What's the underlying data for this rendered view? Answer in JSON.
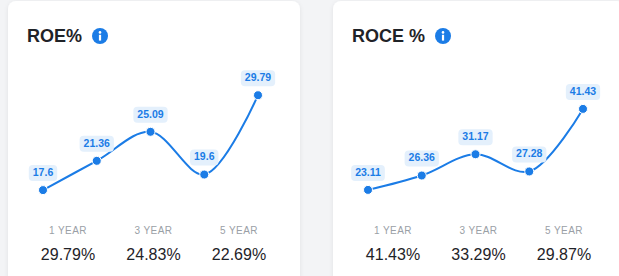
{
  "chart_data": [
    {
      "type": "line",
      "title": "ROE%",
      "color": "#1b7ce6",
      "categories": [
        null,
        null,
        null,
        null,
        null
      ],
      "values": [
        17.6,
        21.36,
        25.09,
        19.6,
        29.79
      ],
      "ylim": [
        16.2,
        32.9
      ],
      "data_labels": true,
      "tick_labels": false,
      "summary": {
        "labels": [
          "1 YEAR",
          "3 YEAR",
          "5 YEAR"
        ],
        "values": [
          29.79,
          24.83,
          22.69
        ],
        "value_labels": [
          "29.79%",
          "24.83%",
          "22.69%"
        ]
      }
    },
    {
      "type": "line",
      "title": "ROCE %",
      "color": "#1b7ce6",
      "categories": [
        null,
        null,
        null,
        null,
        null
      ],
      "values": [
        23.11,
        26.36,
        31.17,
        27.28,
        41.43
      ],
      "ylim": [
        20.6,
        50
      ],
      "data_labels": true,
      "tick_labels": false,
      "summary": {
        "labels": [
          "1 YEAR",
          "3 YEAR",
          "5 YEAR"
        ],
        "values": [
          41.43,
          33.29,
          29.87
        ],
        "value_labels": [
          "41.43%",
          "33.29%",
          "29.87%"
        ]
      }
    }
  ]
}
